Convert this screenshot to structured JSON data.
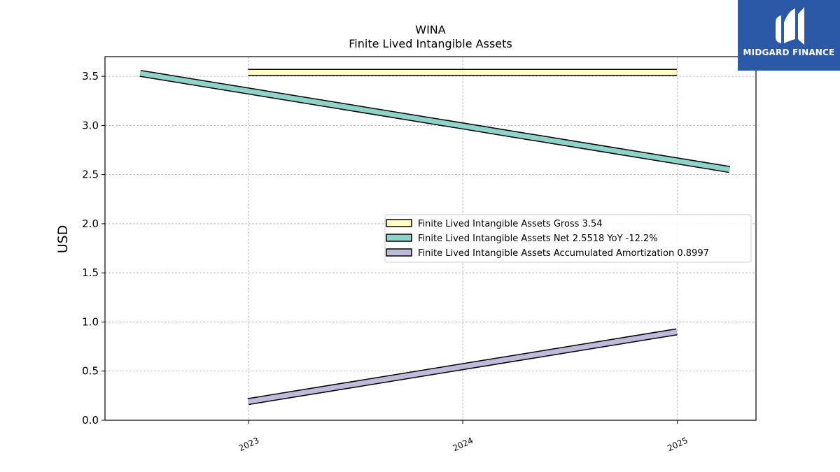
{
  "chart_data": {
    "type": "line",
    "title": "WINA",
    "subtitle": "Finite Lived Intangible Assets",
    "ylabel": "USD",
    "xlabel": "",
    "x_ticks": [
      "2023",
      "2024",
      "2025"
    ],
    "y_ticks": [
      "0.0",
      "0.5",
      "1.0",
      "1.5",
      "2.0",
      "2.5",
      "3.0",
      "3.5"
    ],
    "ylim": [
      0,
      3.7
    ],
    "xlim": [
      "2022-05-01",
      "2025-05-15"
    ],
    "grid": true,
    "legend_position": "center-right",
    "series": [
      {
        "name": "Finite Lived Intangible Assets Gross",
        "legend_label": "Finite Lived Intangible Assets Gross  3.54",
        "color": "#ffffbf",
        "points": [
          {
            "x": "2022-12-31",
            "y": 3.54
          },
          {
            "x": "2024-12-31",
            "y": 3.54
          }
        ]
      },
      {
        "name": "Finite Lived Intangible Assets Net",
        "legend_label": "Finite Lived Intangible Assets Net  2.5518 YoY -12.2%",
        "color": "#8dd3c7",
        "points": [
          {
            "x": "2022-06-30",
            "y": 3.53
          },
          {
            "x": "2025-03-31",
            "y": 2.5518
          }
        ]
      },
      {
        "name": "Finite Lived Intangible Assets Accumulated Amortization",
        "legend_label": "Finite Lived Intangible Assets Accumulated Amortization  0.8997",
        "color": "#bebada",
        "points": [
          {
            "x": "2022-12-31",
            "y": 0.19
          },
          {
            "x": "2024-12-31",
            "y": 0.8997
          }
        ]
      }
    ]
  },
  "logo": {
    "text": "MIDGARD FINANCE",
    "background": "#2c58a8"
  }
}
